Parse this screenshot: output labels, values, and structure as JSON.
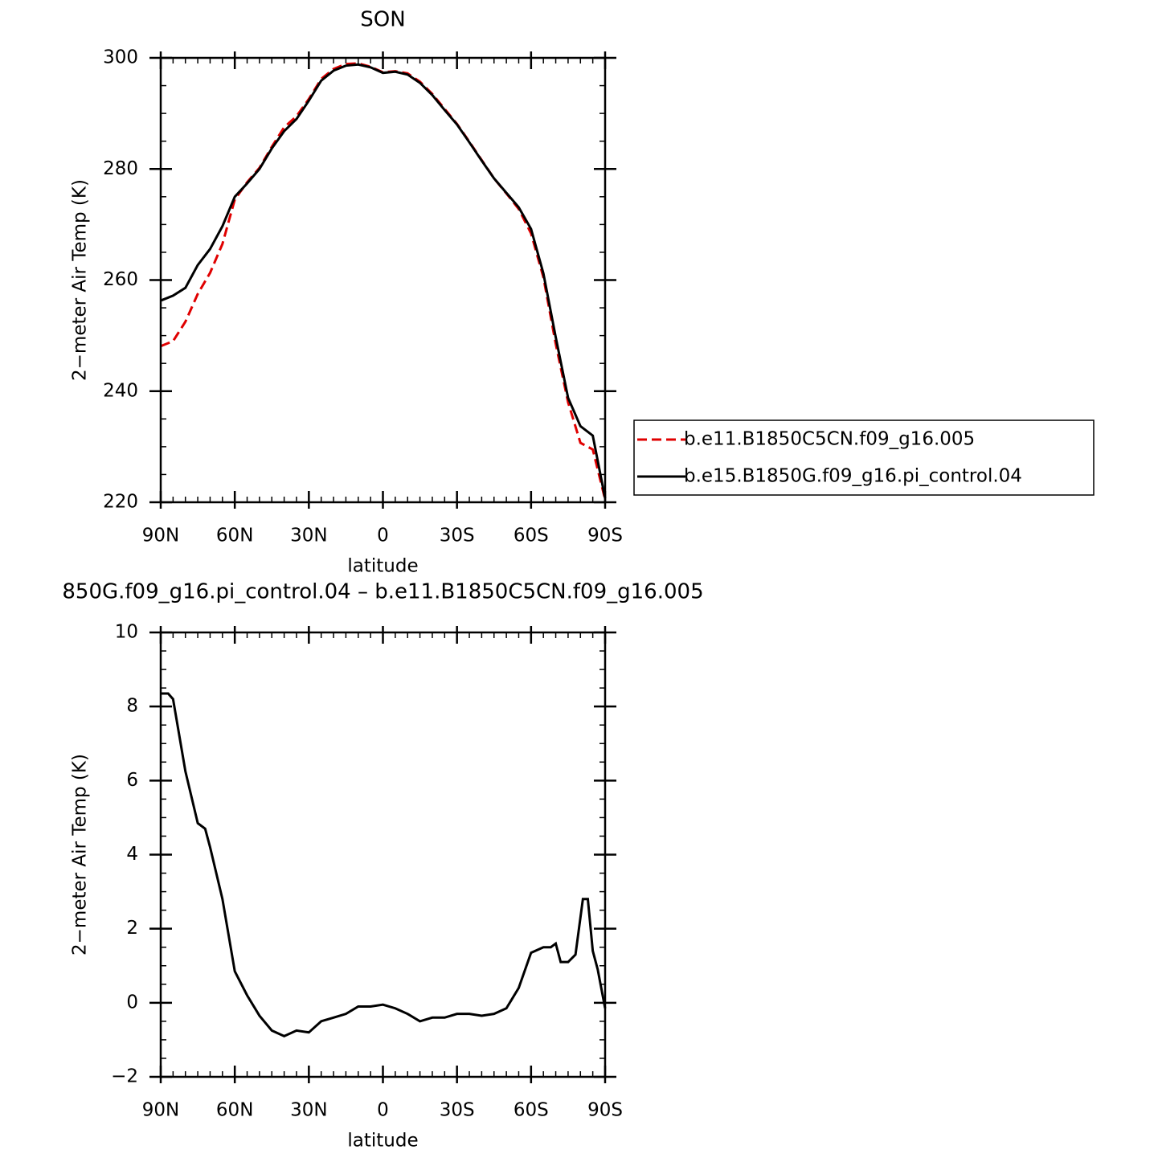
{
  "chart_data": [
    {
      "type": "line",
      "title": "SON",
      "x_label": "latitude",
      "y_label": "2−meter Air Temp (K)",
      "x": [
        90,
        85,
        80,
        75,
        70,
        65,
        60,
        55,
        50,
        45,
        40,
        35,
        30,
        25,
        20,
        15,
        10,
        5,
        0,
        -5,
        -10,
        -15,
        -20,
        -25,
        -30,
        -35,
        -40,
        -45,
        -50,
        -55,
        -60,
        -65,
        -70,
        -75,
        -80,
        -85,
        -90
      ],
      "series": [
        {
          "name": "b.e11.B1850C5CN.f09_g16.005",
          "color": "#e00000",
          "line_style": "dashed",
          "values": [
            248.1,
            249.0,
            252.5,
            257.5,
            261.3,
            266.5,
            274.5,
            277.6,
            280.2,
            284.0,
            287.5,
            289.5,
            292.6,
            296.2,
            298.0,
            298.9,
            299.0,
            298.4,
            297.4,
            297.6,
            297.2,
            295.7,
            293.5,
            290.8,
            288.1,
            284.9,
            281.6,
            278.3,
            275.6,
            272.8,
            268.4,
            260.5,
            248.5,
            238.0,
            230.7,
            229.5,
            220.5
          ]
        },
        {
          "name": "b.e15.B1850G.f09_g16.pi_control.04",
          "color": "#000000",
          "line_style": "solid",
          "values": [
            256.3,
            257.2,
            258.6,
            262.7,
            265.6,
            269.7,
            275.0,
            277.4,
            280.0,
            283.7,
            286.8,
            289.0,
            292.3,
            295.9,
            297.7,
            298.6,
            298.8,
            298.3,
            297.3,
            297.5,
            297.0,
            295.5,
            293.3,
            290.6,
            288.0,
            284.8,
            281.5,
            278.3,
            275.7,
            273.1,
            269.2,
            261.2,
            249.7,
            238.8,
            233.7,
            232.0,
            220.7
          ]
        }
      ],
      "xlim": [
        90,
        -90
      ],
      "xticks": [
        {
          "value": 90,
          "label": "90N"
        },
        {
          "value": 60,
          "label": "60N"
        },
        {
          "value": 30,
          "label": "30N"
        },
        0,
        {
          "value": -30,
          "label": "30S"
        },
        {
          "value": -60,
          "label": "60S"
        },
        {
          "value": -90,
          "label": "90S"
        }
      ],
      "ylim": [
        220,
        300
      ],
      "yticks": [
        220,
        240,
        260,
        280,
        300
      ],
      "legend": "right"
    },
    {
      "type": "line",
      "title": "850G.f09_g16.pi_control.04 – b.e11.B1850C5CN.f09_g16.005",
      "x_label": "latitude",
      "y_label": "2−meter Air Temp (K)",
      "x": [
        90,
        87,
        85,
        80,
        75,
        72,
        70,
        65,
        60,
        55,
        50,
        45,
        40,
        35,
        30,
        25,
        20,
        15,
        10,
        5,
        0,
        -5,
        -10,
        -15,
        -20,
        -25,
        -30,
        -35,
        -40,
        -45,
        -50,
        -55,
        -60,
        -65,
        -68,
        -70,
        -72,
        -75,
        -78,
        -81,
        -83,
        -85,
        -87,
        -90
      ],
      "series": [
        {
          "name": "difference",
          "color": "#000000",
          "line_style": "solid",
          "values": [
            8.35,
            8.35,
            8.2,
            6.25,
            4.85,
            4.7,
            4.2,
            2.8,
            0.85,
            0.2,
            -0.35,
            -0.75,
            -0.9,
            -0.75,
            -0.8,
            -0.5,
            -0.4,
            -0.3,
            -0.1,
            -0.1,
            -0.05,
            -0.15,
            -0.3,
            -0.5,
            -0.4,
            -0.4,
            -0.3,
            -0.3,
            -0.35,
            -0.3,
            -0.15,
            0.4,
            1.35,
            1.5,
            1.5,
            1.6,
            1.1,
            1.1,
            1.3,
            2.8,
            2.8,
            1.4,
            0.9,
            -0.15
          ]
        }
      ],
      "xlim": [
        90,
        -90
      ],
      "xticks": [
        {
          "value": 90,
          "label": "90N"
        },
        {
          "value": 60,
          "label": "60N"
        },
        {
          "value": 30,
          "label": "30N"
        },
        0,
        {
          "value": -30,
          "label": "30S"
        },
        {
          "value": -60,
          "label": "60S"
        },
        {
          "value": -90,
          "label": "90S"
        }
      ],
      "ylim": [
        -2,
        10
      ],
      "yticks": [
        {
          "value": -2,
          "label": "−2"
        },
        0,
        2,
        4,
        6,
        8,
        10
      ]
    }
  ]
}
